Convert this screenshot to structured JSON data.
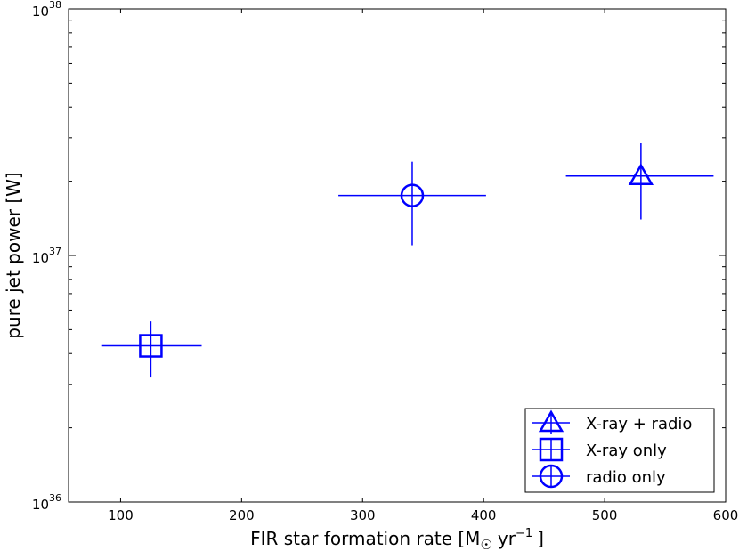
{
  "chart_data": {
    "type": "scatter",
    "xlabel": "FIR star formation rate [M",
    "xlabel_unit": "yr",
    "xlabel_exponent": "−1",
    "xlabel_close": "]",
    "ylabel": "pure jet power [W]",
    "xlim": [
      57,
      600
    ],
    "ylim": [
      1e+36,
      1e+38
    ],
    "y_scale": "log",
    "x_ticks": [
      100,
      200,
      300,
      400,
      500,
      600
    ],
    "y_ticks": [
      {
        "value": 1e+36,
        "base": "10",
        "exp": "36"
      },
      {
        "value": 1e+37,
        "base": "10",
        "exp": "37"
      },
      {
        "value": 1e+38,
        "base": "10",
        "exp": "38"
      }
    ],
    "grid": false,
    "legend_position": "lower right",
    "color": "#0000ff",
    "series": [
      {
        "name": "X-ray + radio",
        "marker": "triangle",
        "x": 530,
        "y": 2.1e+37,
        "x_err": [
          468,
          590
        ],
        "y_err": [
          1.4e+37,
          2.85e+37
        ]
      },
      {
        "name": "X-ray only",
        "marker": "square",
        "x": 125,
        "y": 4.3e+36,
        "x_err": [
          84,
          167
        ],
        "y_err": [
          3.2e+36,
          5.4e+36
        ]
      },
      {
        "name": "radio only",
        "marker": "circle",
        "x": 341,
        "y": 1.75e+37,
        "x_err": [
          280,
          402
        ],
        "y_err": [
          1.1e+37,
          2.4e+37
        ]
      }
    ]
  }
}
